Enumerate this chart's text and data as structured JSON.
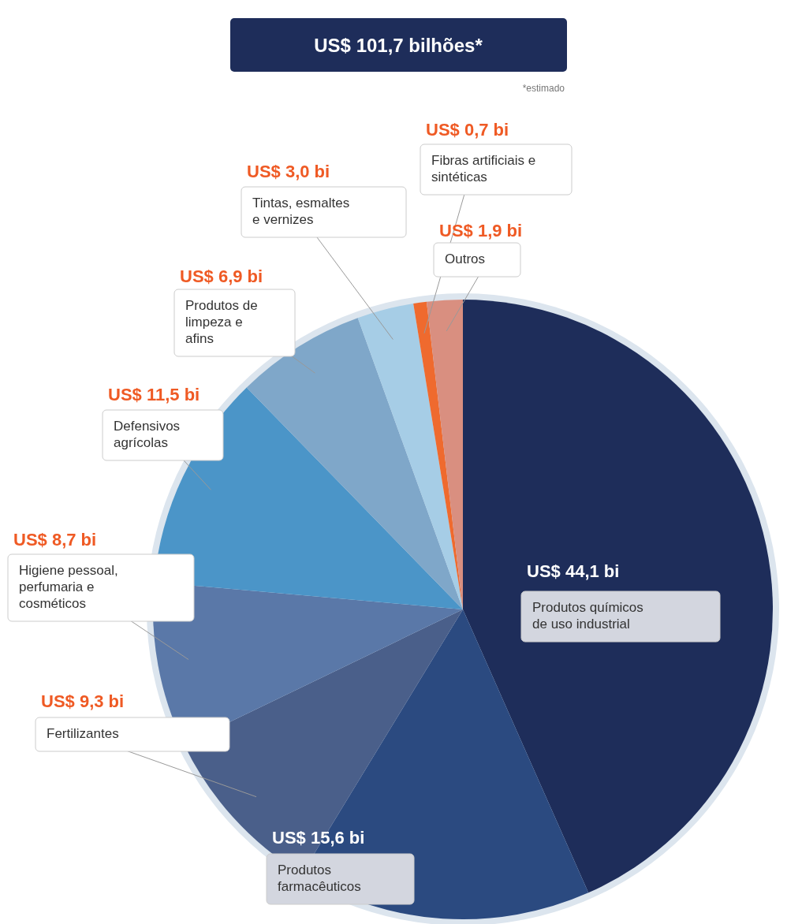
{
  "chart_data": {
    "type": "pie",
    "title": "US$ 101,7 bilhões*",
    "annotations": [
      "*estimado"
    ],
    "categories": [
      "Produtos químicos de uso industrial",
      "Produtos farmacêuticos",
      "Fertilizantes",
      "Higiene pessoal, perfumaria e cosméticos",
      "Defensivos agrícolas",
      "Produtos de limpeza e afins",
      "Tintas, esmaltes e vernizes",
      "Fibras artificiais e sintéticas",
      "Outros"
    ],
    "values": [
      44.1,
      15.6,
      9.3,
      8.7,
      11.5,
      6.9,
      3.0,
      0.7,
      1.9
    ],
    "value_labels": [
      "US$ 44,1 bi",
      "US$ 15,6 bi",
      "US$ 9,3 bi",
      "US$ 8,7 bi",
      "US$ 11,5 bi",
      "US$ 6,9 bi",
      "US$ 3,0 bi",
      "US$ 0,7 bi",
      "US$ 1,9 bi"
    ],
    "colors": [
      "#1e2d5a",
      "#2b4a80",
      "#4a5f8a",
      "#5a78a8",
      "#4b95c8",
      "#7fa7c9",
      "#a6cde6",
      "#ef6a2e",
      "#d98f80"
    ]
  }
}
